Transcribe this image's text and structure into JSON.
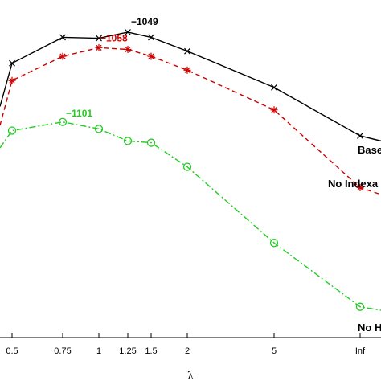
{
  "chart_data": {
    "type": "line",
    "xlabel": "λ",
    "ylabel": "",
    "title": "",
    "categories": [
      "0.5",
      "0.75",
      "1",
      "1.25",
      "1.5",
      "2",
      "5",
      "Inf"
    ],
    "x_ticks_visible": [
      "0.5",
      "0.75",
      "1",
      "1.25",
      "1.5",
      "2",
      "5",
      "Inf"
    ],
    "grid": false,
    "legend": "none",
    "ylim": [
      -1250,
      -1030
    ],
    "series": [
      {
        "name": "Base",
        "color": "#000000",
        "marker": "x",
        "linestyle": "solid",
        "points": [
          {
            "x": 0.25,
            "y": -1092
          },
          {
            "x": 0.5,
            "y": -1067
          },
          {
            "x": 0.75,
            "y": -1052
          },
          {
            "x": 1,
            "y": -1052.5
          },
          {
            "x": 1.25,
            "y": -1049
          },
          {
            "x": 1.5,
            "y": -1052
          },
          {
            "x": 2,
            "y": -1060
          },
          {
            "x": 5,
            "y": -1081
          },
          {
            "x": 8,
            "y": -1109
          },
          {
            "x": 8.7,
            "y": -1112
          }
        ]
      },
      {
        "name": "No Indexa",
        "color": "#cc0000",
        "marker": "*",
        "linestyle": "dashed",
        "points": [
          {
            "x": 0.25,
            "y": -1103
          },
          {
            "x": 0.5,
            "y": -1077
          },
          {
            "x": 0.75,
            "y": -1063
          },
          {
            "x": 1,
            "y": -1058
          },
          {
            "x": 1.25,
            "y": -1059
          },
          {
            "x": 1.5,
            "y": -1063
          },
          {
            "x": 2,
            "y": -1071
          },
          {
            "x": 5,
            "y": -1094
          },
          {
            "x": 8,
            "y": -1139
          },
          {
            "x": 8.7,
            "y": -1143
          }
        ]
      },
      {
        "name": "No H",
        "color": "#22cc22",
        "marker": "o",
        "linestyle": "dashdot",
        "points": [
          {
            "x": 0.25,
            "y": -1116
          },
          {
            "x": 0.5,
            "y": -1106
          },
          {
            "x": 0.75,
            "y": -1101
          },
          {
            "x": 1,
            "y": -1105
          },
          {
            "x": 1.25,
            "y": -1112
          },
          {
            "x": 1.5,
            "y": -1113
          },
          {
            "x": 2,
            "y": -1127
          },
          {
            "x": 5,
            "y": -1171
          },
          {
            "x": 8,
            "y": -1208
          },
          {
            "x": 8.7,
            "y": -1210
          }
        ]
      }
    ],
    "annotations": [
      {
        "text": "−1049",
        "series": "Base",
        "x": 1.25
      },
      {
        "text": "−1058",
        "series": "No Indexa",
        "x": 1
      },
      {
        "text": "−1101",
        "series": "No H",
        "x": 0.75
      }
    ]
  }
}
